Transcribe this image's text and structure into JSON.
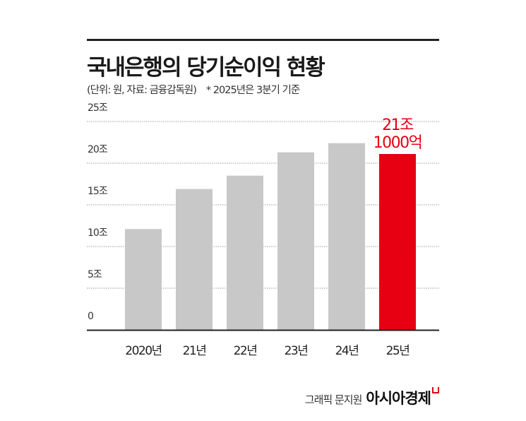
{
  "title": "국내은행의 당기순이익 현황",
  "subtitle": "(단위: 원, 자료: 금융감독원)",
  "note": "* 2025년은 3분기 기준",
  "credit": {
    "text": "그래픽 문지원",
    "logo": "아시아경제"
  },
  "colors": {
    "bar": "#c8c8c8",
    "highlight": "#e60012",
    "axis": "#222222",
    "grid": "#999999"
  },
  "chart_data": {
    "type": "bar",
    "categories": [
      "2020년",
      "21년",
      "22년",
      "23년",
      "24년",
      "25년"
    ],
    "values": [
      12.1,
      16.9,
      18.5,
      21.3,
      22.4,
      21.1
    ],
    "unit": "조 원",
    "ylim": [
      0,
      25
    ],
    "yticks": [
      {
        "value": 0,
        "label": "0"
      },
      {
        "value": 5,
        "label": "5조"
      },
      {
        "value": 10,
        "label": "10조"
      },
      {
        "value": 15,
        "label": "15조"
      },
      {
        "value": 20,
        "label": "20조"
      },
      {
        "value": 25,
        "label": "25조"
      }
    ],
    "grid": true,
    "highlight_index": 5,
    "annotation": {
      "line1": "21조",
      "line2": "1000억"
    }
  }
}
